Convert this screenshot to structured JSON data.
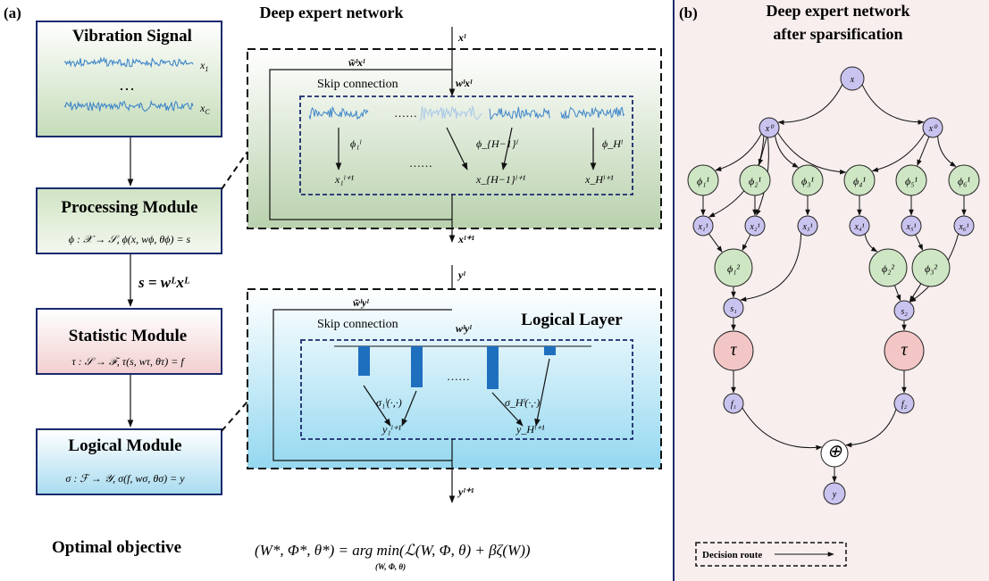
{
  "panel_a": {
    "label": "(a)",
    "modules": {
      "vibration": {
        "title": "Vibration Signal",
        "x1": "x",
        "x1_sub": "1",
        "xc": "x",
        "xc_sub": "C",
        "ellipsis": "…"
      },
      "processing": {
        "title": "Processing Module",
        "formula": "ϕ : 𝒳 → 𝒮, ϕ(x, w",
        "formula_full": "ϕ : 𝒳 → 𝒮, ϕ(x, wϕ, θϕ) = s"
      },
      "s_equation": "s = w",
      "s_equation_full": "s = wᴸxᴸ",
      "statistic": {
        "title": "Statistic Module",
        "formula": "τ : 𝒮 → ℱ, τ(s, wτ, θτ) = f"
      },
      "logical": {
        "title": "Logical Module",
        "formula": "σ : ℱ → 𝒴, σ(f, wσ, θσ) = y"
      }
    },
    "expert_network": {
      "title": "Deep expert network",
      "input": "xˡ",
      "skip_weight": "w̃ˡxˡ",
      "main_weight": "wˡxˡ",
      "skip_label": "Skip connection",
      "dots": "……",
      "phi_1": "ϕ₁ˡ",
      "phi_H1": "ϕ_{H−1}ˡ",
      "phi_H": "ϕ_Hˡ",
      "out_1": "x₁ˡ⁺¹",
      "out_H1": "x_{H−1}ˡ⁺¹",
      "out_H": "x_Hˡ⁺¹",
      "output": "xˡ⁺¹"
    },
    "logical_layer": {
      "title": "Logical  Layer",
      "input": "yˡ",
      "skip_weight": "w̃ˡyˡ",
      "main_weight": "wˡyˡ",
      "skip_label": "Skip connection",
      "dots": "……",
      "sigma_1": "σ₁ˡ(·,·)",
      "sigma_H": "σ_Hˡ(·,·)",
      "out_1": "y₁ˡ⁺¹",
      "out_H": "y_Hˡ⁺¹",
      "output": "yˡ⁺¹"
    },
    "objective": {
      "label": "Optimal objective",
      "formula": "(W*, Φ*, θ*) = arg min(ℒ(W, Φ, θ) + βζ(W))",
      "subscript": "(W, Φ, θ)"
    }
  },
  "panel_b": {
    "label": "(b)",
    "title_line1": "Deep expert network",
    "title_line2": "after sparsification",
    "nodes": {
      "x": "x",
      "x0a": "x⁰",
      "x0b": "x⁰",
      "phi1": "ϕ₁¹",
      "phi2": "ϕ₂¹",
      "phi3": "ϕ₃¹",
      "phi4": "ϕ₄¹",
      "phi5": "ϕ₅¹",
      "phi6": "ϕ₆¹",
      "x1": "x₁¹",
      "x2": "x₂¹",
      "x3": "x₃¹",
      "x4": "x₄¹",
      "x5": "x₅¹",
      "x6": "x₆¹",
      "phi21": "ϕ₁²",
      "phi22": "ϕ₂²",
      "phi23": "ϕ₃²",
      "s1": "s₁",
      "s2": "s₂",
      "tau1": "τ",
      "tau2": "τ",
      "f1": "f₁",
      "f2": "f₂",
      "oplus": "⊕",
      "y": "y"
    },
    "legend": "Decision route"
  },
  "colors": {
    "module_border": "#1a2a6c",
    "divider": "#1a2a6c",
    "node_purple": "#c9c3ef",
    "node_green": "#cfe6c4",
    "node_red": "#f3c6c6",
    "panel_b_bg": "#f8eeee",
    "signal_blue": "#3f86c9",
    "bar_blue": "#1f6fbf"
  }
}
